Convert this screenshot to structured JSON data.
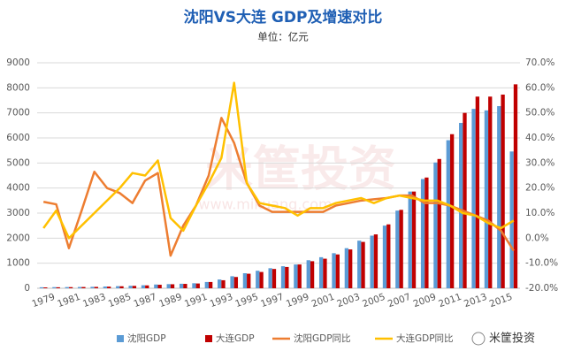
{
  "chart_data": {
    "type": "combo",
    "title": "沈阳VS大连 GDP及增速对比",
    "subtitle": "单位：亿元",
    "watermark": "米筐投资",
    "watermark_url": "www.mikuang.com",
    "brand": "米筐投资",
    "categories": [
      "1979",
      null,
      "1981",
      null,
      "1983",
      null,
      "1985",
      null,
      "1987",
      null,
      "1989",
      null,
      "1991",
      null,
      "1993",
      null,
      "1995",
      null,
      "1997",
      null,
      "1999",
      null,
      "2001",
      null,
      "2003",
      null,
      "2005",
      null,
      "2007",
      null,
      "2009",
      null,
      "2011",
      null,
      "2013",
      null,
      "2015",
      null
    ],
    "series": [
      {
        "name": "沈阳GDP",
        "type": "bar",
        "color": "#5b9bd5",
        "values": [
          40,
          45,
          48,
          52,
          58,
          70,
          85,
          100,
          120,
          150,
          165,
          180,
          200,
          250,
          350,
          480,
          600,
          700,
          800,
          880,
          950,
          1120,
          1240,
          1400,
          1600,
          1900,
          2100,
          2500,
          3100,
          3860,
          4360,
          5020,
          5910,
          6600,
          7160,
          7100,
          7270,
          5460
        ]
      },
      {
        "name": "大连GDP",
        "type": "bar",
        "color": "#c00000",
        "values": [
          35,
          40,
          45,
          50,
          55,
          65,
          80,
          95,
          115,
          140,
          160,
          175,
          190,
          250,
          320,
          450,
          580,
          650,
          770,
          850,
          950,
          1080,
          1180,
          1350,
          1550,
          1850,
          2150,
          2550,
          3130,
          3860,
          4420,
          5160,
          6150,
          7000,
          7650,
          7650,
          7730,
          8140
        ]
      },
      {
        "name": "沈阳GDP同比",
        "type": "line",
        "axis": "y2",
        "color": "#ed7d31",
        "values": [
          14.5,
          13.5,
          -4,
          11,
          26.5,
          20,
          18,
          14,
          23,
          26,
          -7,
          5,
          13,
          25,
          48,
          38,
          22,
          13,
          10.5,
          10.5,
          10.5,
          10.5,
          10.5,
          13,
          14,
          15,
          15.5,
          16,
          17,
          17,
          14,
          14,
          13,
          11,
          9,
          7,
          3,
          -5
        ]
      },
      {
        "name": "大连GDP同比",
        "type": "line",
        "axis": "y2",
        "color": "#ffc000",
        "values": [
          4,
          11,
          0,
          5,
          10,
          15,
          20,
          26,
          25,
          31,
          8,
          3,
          13,
          22,
          32,
          62,
          22,
          14,
          13,
          12,
          9,
          12,
          12,
          14,
          15,
          16,
          14,
          16,
          17,
          16,
          15,
          15,
          13,
          10,
          9,
          6,
          4,
          7
        ]
      }
    ],
    "ylim": [
      0,
      9000
    ],
    "yticks": [
      0,
      1000,
      2000,
      3000,
      4000,
      5000,
      6000,
      7000,
      8000,
      9000
    ],
    "y2lim": [
      -20,
      70
    ],
    "y2ticks": [
      {
        "value": -20,
        "label": "-20.0%"
      },
      {
        "value": -10,
        "label": "-10.0%"
      },
      {
        "value": 0,
        "label": "0.0%"
      },
      {
        "value": 10,
        "label": "10.0%"
      },
      {
        "value": 20,
        "label": "20.0%"
      },
      {
        "value": 30,
        "label": "30.0%"
      },
      {
        "value": 40,
        "label": "40.0%"
      },
      {
        "value": 50,
        "label": "50.0%"
      },
      {
        "value": 60,
        "label": "60.0%"
      },
      {
        "value": 70,
        "label": "70.0%"
      }
    ],
    "grid": true,
    "legend": "bottom"
  }
}
